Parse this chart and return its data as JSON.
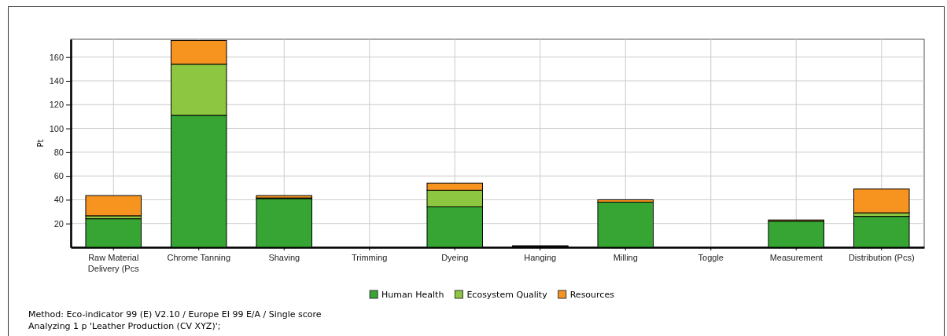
{
  "chart_data": {
    "type": "bar",
    "stacked": true,
    "ylabel": "Pt",
    "categories": [
      "Raw Material Delivery (Pcs",
      "Chrome Tanning",
      "Shaving",
      "Trimming",
      "Dyeing",
      "Hanging",
      "Milling",
      "Toggle",
      "Measurement",
      "Distribution (Pcs)"
    ],
    "series": [
      {
        "name": "Human Health",
        "color": "#36a533",
        "values": [
          24,
          111,
          41,
          0,
          34,
          0.5,
          38,
          0,
          22,
          26
        ]
      },
      {
        "name": "Ecosystem Quality",
        "color": "#8dc641",
        "values": [
          2.5,
          43,
          0.5,
          0,
          14,
          0.5,
          null,
          0,
          null,
          3
        ]
      },
      {
        "name": "Resources",
        "color": "#f7941f",
        "values": [
          17,
          20,
          2,
          0,
          6,
          0.3,
          2,
          0,
          1,
          20
        ]
      }
    ],
    "ylim": [
      0,
      175
    ],
    "yticks": [
      20,
      40,
      60,
      80,
      100,
      120,
      140,
      160
    ],
    "grid": true,
    "legend": "bottom",
    "annotations": [
      "Method: Eco-indicator 99 (E) V2.10 / Europe EI 99 E/A / Single score",
      "Analyzing 1 p 'Leather Production (CV XYZ)';"
    ]
  }
}
